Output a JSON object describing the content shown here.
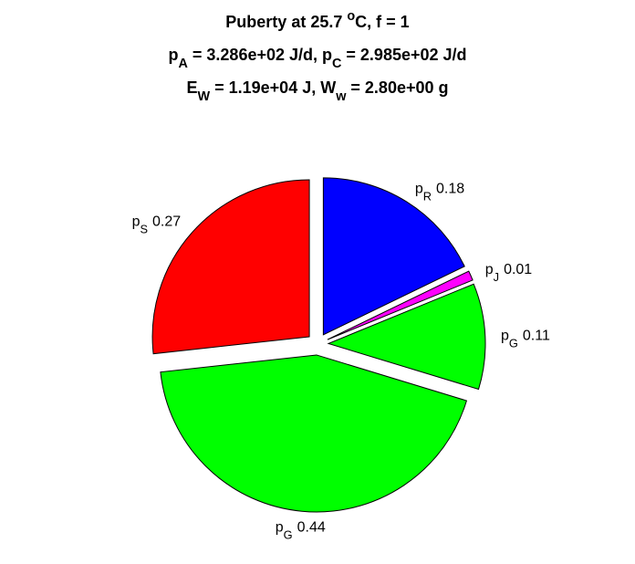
{
  "chart_data": {
    "type": "pie",
    "title": [
      [
        "Puberty at 25.7 ",
        {
          "sup": "o"
        },
        "C, f = 1"
      ],
      [
        "p",
        {
          "sub": "A"
        },
        " = 3.286e+02 J/d,  p",
        {
          "sub": "C"
        },
        " = 2.985e+02 J/d"
      ],
      [
        "E",
        {
          "sub": "W"
        },
        " = 1.19e+04 J, W",
        {
          "sub": "w"
        },
        " = 2.80e+00 g"
      ]
    ],
    "labels": [
      [
        "p",
        {
          "sub": "R"
        }
      ],
      [
        "p",
        {
          "sub": "J"
        }
      ],
      [
        "p",
        {
          "sub": "G"
        }
      ],
      [
        "p",
        {
          "sub": "G"
        }
      ],
      [
        "p",
        {
          "sub": "S"
        }
      ]
    ],
    "values": [
      0.18,
      0.01,
      0.11,
      0.44,
      0.27
    ],
    "colors": [
      "#0000ff",
      "#ff00ff",
      "#00ff00",
      "#00ff00",
      "#ff0000"
    ]
  }
}
